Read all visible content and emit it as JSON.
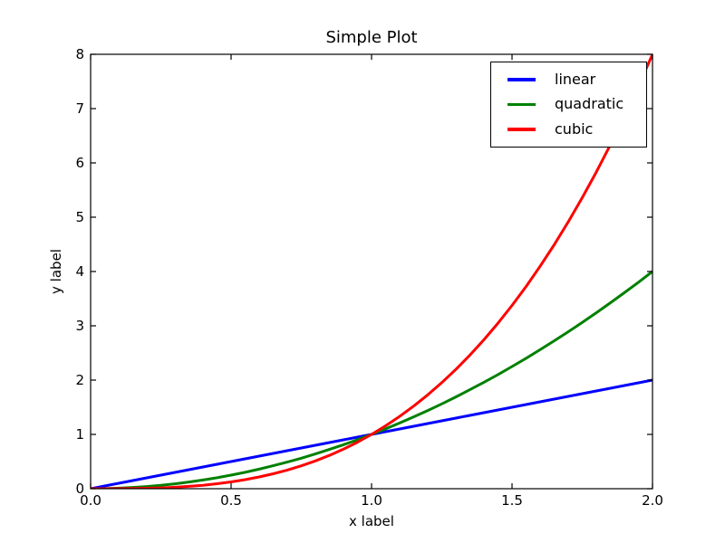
{
  "chart_data": {
    "type": "line",
    "title": "Simple Plot",
    "xlabel": "x label",
    "ylabel": "y label",
    "xlim": [
      0,
      2
    ],
    "ylim": [
      0,
      8
    ],
    "xticks": [
      0.0,
      0.5,
      1.0,
      1.5,
      2.0
    ],
    "xtick_labels": [
      "0.0",
      "0.5",
      "1.0",
      "1.5",
      "2.0"
    ],
    "yticks": [
      0,
      1,
      2,
      3,
      4,
      5,
      6,
      7,
      8
    ],
    "ytick_labels": [
      "0",
      "1",
      "2",
      "3",
      "4",
      "5",
      "6",
      "7",
      "8"
    ],
    "grid": false,
    "legend_position": "upper right",
    "line_width": 3,
    "axis_color": "#000000",
    "background_color": "#ffffff",
    "x": [
      0,
      0.05,
      0.1,
      0.15,
      0.2,
      0.25,
      0.3,
      0.35,
      0.4,
      0.45,
      0.5,
      0.55,
      0.6,
      0.65,
      0.7,
      0.75,
      0.8,
      0.85,
      0.9,
      0.95,
      1,
      1.05,
      1.1,
      1.15,
      1.2,
      1.25,
      1.3,
      1.35,
      1.4,
      1.45,
      1.5,
      1.55,
      1.6,
      1.65,
      1.7,
      1.75,
      1.8,
      1.85,
      1.9,
      1.95,
      2
    ],
    "series": [
      {
        "name": "linear",
        "color": "#0000ff",
        "values": [
          0,
          0.05,
          0.1,
          0.15,
          0.2,
          0.25,
          0.3,
          0.35,
          0.4,
          0.45,
          0.5,
          0.55,
          0.6,
          0.65,
          0.7,
          0.75,
          0.8,
          0.85,
          0.9,
          0.95,
          1,
          1.05,
          1.1,
          1.15,
          1.2,
          1.25,
          1.3,
          1.35,
          1.4,
          1.45,
          1.5,
          1.55,
          1.6,
          1.65,
          1.7,
          1.75,
          1.8,
          1.85,
          1.9,
          1.95,
          2
        ]
      },
      {
        "name": "quadratic",
        "color": "#008000",
        "values": [
          0,
          0.0025,
          0.01,
          0.0225,
          0.04,
          0.0625,
          0.09,
          0.1225,
          0.16,
          0.2025,
          0.25,
          0.3025,
          0.36,
          0.4225,
          0.49,
          0.5625,
          0.64,
          0.7225,
          0.81,
          0.9025,
          1,
          1.1025,
          1.21,
          1.3225,
          1.44,
          1.5625,
          1.69,
          1.8225,
          1.96,
          2.1025,
          2.25,
          2.4025,
          2.56,
          2.7225,
          2.89,
          3.0625,
          3.24,
          3.4225,
          3.61,
          3.8025,
          4
        ]
      },
      {
        "name": "cubic",
        "color": "#ff0000",
        "values": [
          0,
          0.0001,
          0.001,
          0.0034,
          0.008,
          0.0156,
          0.027,
          0.0429,
          0.064,
          0.0911,
          0.125,
          0.1664,
          0.216,
          0.2746,
          0.343,
          0.4219,
          0.512,
          0.6141,
          0.729,
          0.8574,
          1,
          1.1576,
          1.331,
          1.5209,
          1.728,
          1.9531,
          2.197,
          2.4604,
          2.744,
          3.0486,
          3.375,
          3.7239,
          4.096,
          4.4921,
          4.913,
          5.3594,
          5.832,
          6.3316,
          6.859,
          7.4149,
          8
        ]
      }
    ]
  }
}
